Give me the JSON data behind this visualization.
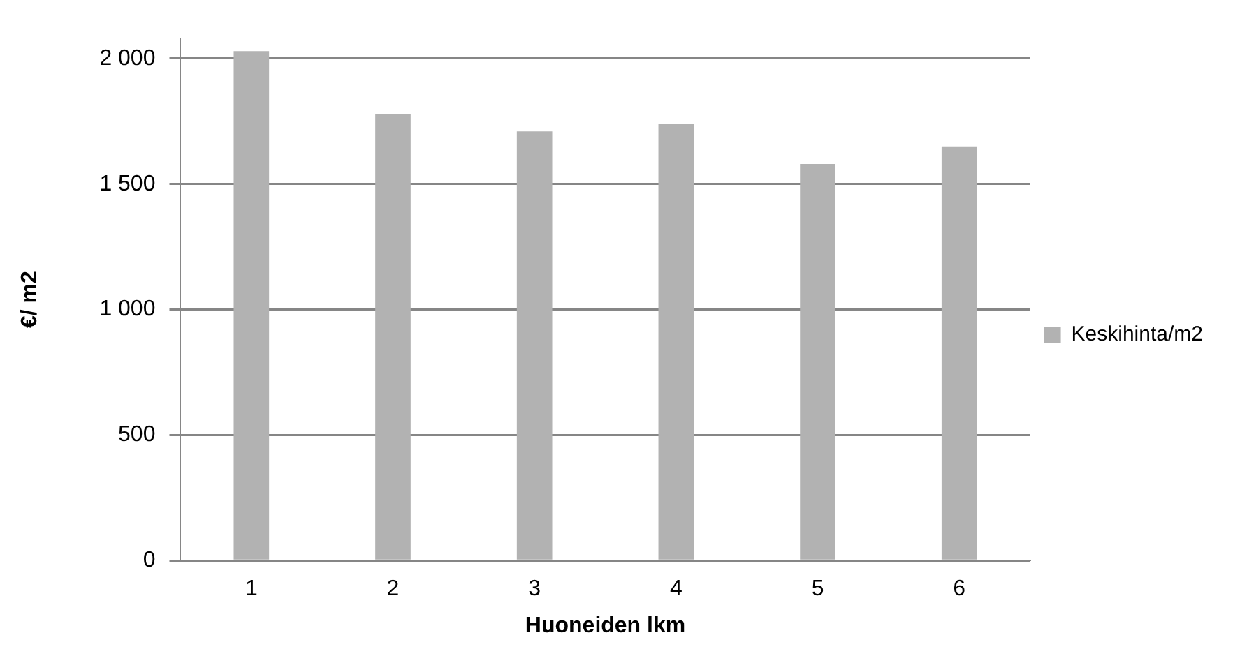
{
  "chart_data": {
    "type": "bar",
    "xlabel": "Huoneiden lkm",
    "ylabel": "€/ m2",
    "categories": [
      "1",
      "2",
      "3",
      "4",
      "5",
      "6"
    ],
    "series": [
      {
        "name": "Keskihinta/m2",
        "color": "#b2b2b2",
        "values": [
          2030,
          1780,
          1710,
          1740,
          1580,
          1650
        ]
      }
    ],
    "ylim": [
      0,
      2080
    ],
    "yticks": [
      0,
      500,
      {
        "value": 1000,
        "label": "1 000"
      },
      {
        "value": 1500,
        "label": "1 500"
      },
      {
        "value": 2000,
        "label": "2 000"
      }
    ],
    "grid": "y",
    "legend": "right"
  }
}
